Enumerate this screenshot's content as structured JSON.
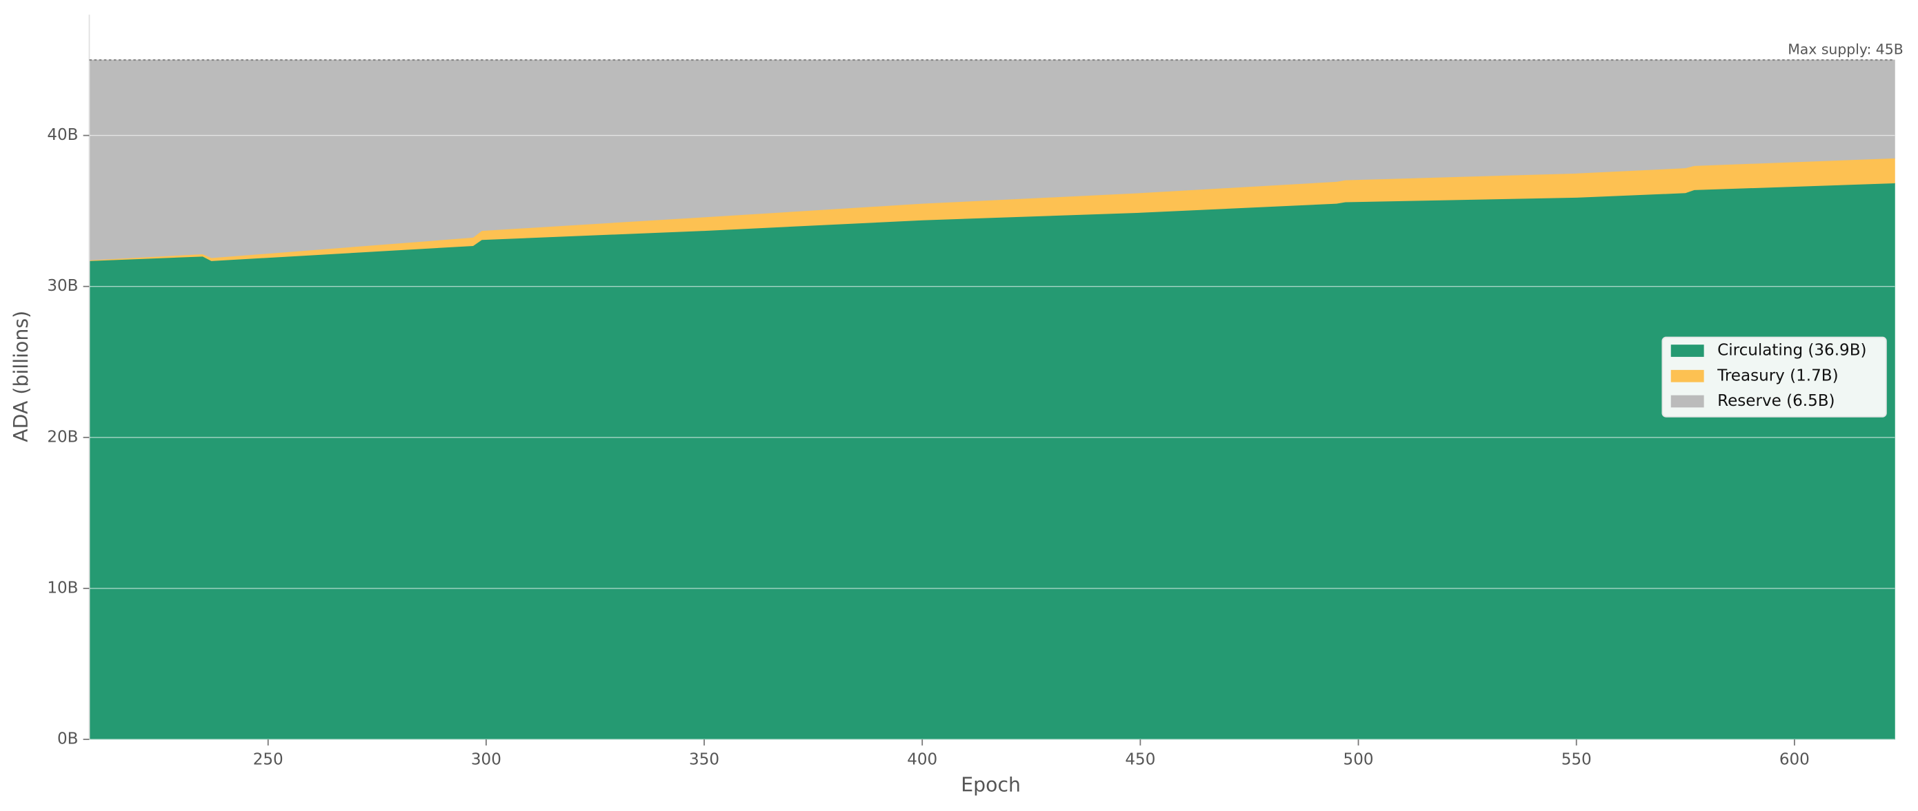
{
  "chart_data": {
    "type": "stacked_area",
    "x_label": "Epoch",
    "y_label": "ADA (billions)",
    "x": [
      209,
      235,
      237,
      297,
      299,
      350,
      400,
      450,
      495,
      497,
      550,
      575,
      577,
      623
    ],
    "series": [
      {
        "name": "Circulating (36.9B)",
        "color": "#259a72",
        "values": [
          31.7,
          32.0,
          31.7,
          32.7,
          33.1,
          33.7,
          34.4,
          34.9,
          35.5,
          35.6,
          35.9,
          36.2,
          36.4,
          36.85
        ]
      },
      {
        "name": "Treasury (1.7B)",
        "color": "#fdc152",
        "values": [
          0.05,
          0.15,
          0.2,
          0.55,
          0.6,
          0.9,
          1.1,
          1.3,
          1.45,
          1.45,
          1.6,
          1.65,
          1.6,
          1.65
        ]
      },
      {
        "name": "Reserve (6.5B)",
        "color": "#bbbbbb",
        "values": [
          13.25,
          12.85,
          13.1,
          11.75,
          11.3,
          10.4,
          9.5,
          8.8,
          8.05,
          7.95,
          7.5,
          7.15,
          7.0,
          6.5
        ]
      }
    ],
    "xlim": [
      209,
      623
    ],
    "ylim": [
      0,
      48
    ],
    "xticks": [
      250,
      300,
      350,
      400,
      450,
      500,
      550,
      600
    ],
    "yticks": [
      {
        "value": 0,
        "label": "0B"
      },
      {
        "value": 10,
        "label": "10B"
      },
      {
        "value": 20,
        "label": "20B"
      },
      {
        "value": 30,
        "label": "30B"
      },
      {
        "value": 40,
        "label": "40B"
      }
    ],
    "grid": true,
    "legend": "right",
    "max_supply": 45,
    "annotation": "Max supply: 45B"
  }
}
